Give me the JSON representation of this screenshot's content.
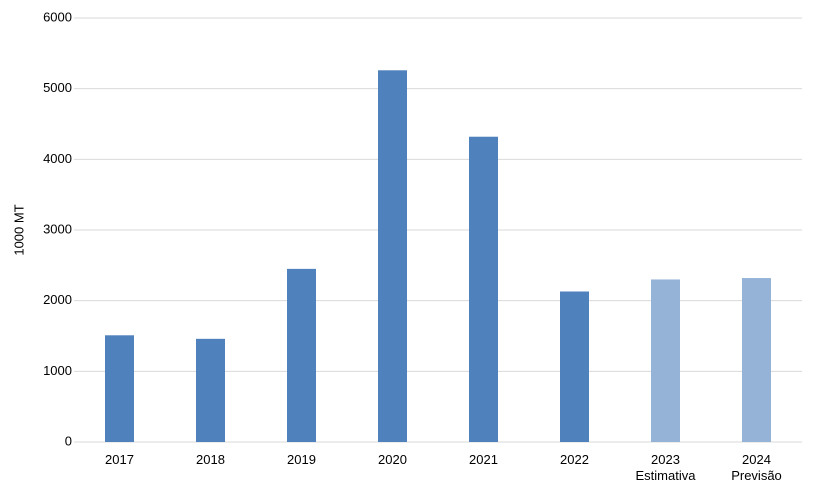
{
  "chart_data": {
    "type": "bar",
    "y_label": "1000 MT",
    "categories": [
      [
        "2017"
      ],
      [
        "2018"
      ],
      [
        "2019"
      ],
      [
        "2020"
      ],
      [
        "2021"
      ],
      [
        "2022"
      ],
      [
        "2023",
        "Estimativa"
      ],
      [
        "2024",
        "Previsão"
      ]
    ],
    "values": [
      1510,
      1460,
      2450,
      5260,
      4320,
      2130,
      2300,
      2320
    ],
    "colors": [
      "#4f81bd",
      "#4f81bd",
      "#4f81bd",
      "#4f81bd",
      "#4f81bd",
      "#4f81bd",
      "#95b3d7",
      "#95b3d7"
    ],
    "ylim": [
      0,
      6000
    ],
    "yticks": [
      0,
      1000,
      2000,
      3000,
      4000,
      5000,
      6000
    ],
    "grid": true
  }
}
